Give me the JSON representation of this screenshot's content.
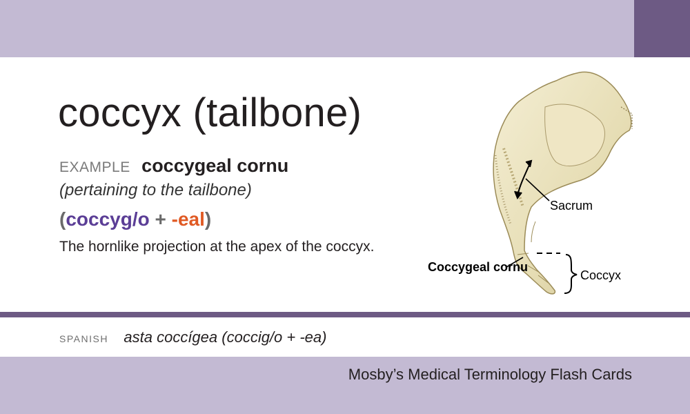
{
  "card": {
    "term": "coccyx (tailbone)",
    "example_label": "EXAMPLE",
    "example_term": "coccygeal cornu",
    "meaning": "(pertaining to the tailbone)",
    "word_parts": {
      "open": "(",
      "root": "coccyg/o",
      "plus": "+",
      "suffix": "-eal",
      "close": ")"
    },
    "definition": "The hornlike projection at the apex of the coccyx.",
    "spanish_label": "SPANISH",
    "spanish_text": "asta coccígea (coccig/o + -ea)",
    "footer": "Mosby’s Medical Terminology Flash Cards"
  },
  "illustration": {
    "labels": {
      "sacrum": "Sacrum",
      "coccyx": "Coccyx",
      "cornu": "Coccygeal cornu"
    }
  },
  "colors": {
    "band": "#c3bad3",
    "accent": "#6d5a84",
    "root": "#5b3e96",
    "suffix": "#e05a24"
  }
}
